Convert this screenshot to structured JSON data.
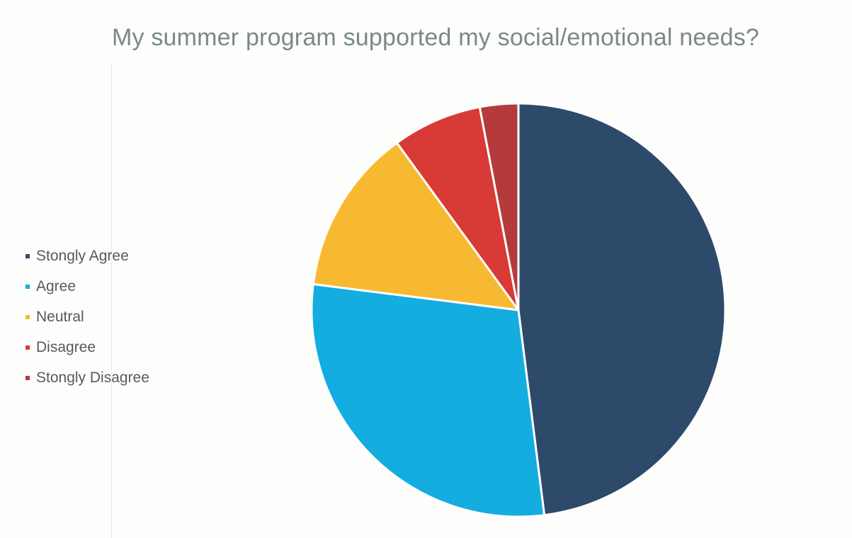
{
  "chart_data": {
    "type": "pie",
    "title": "My summer program supported my social/emotional needs?",
    "categories": [
      "Stongly Agree",
      "Agree",
      "Neutral",
      "Disagree",
      "Stongly Disagree"
    ],
    "values": [
      48,
      29,
      13,
      7,
      3
    ],
    "colors": [
      "#2e4a6b",
      "#13ade0",
      "#f8b932",
      "#d83a36",
      "#b53a3c"
    ],
    "start_angle_deg": 0,
    "direction": "clockwise",
    "legend_position": "left"
  }
}
